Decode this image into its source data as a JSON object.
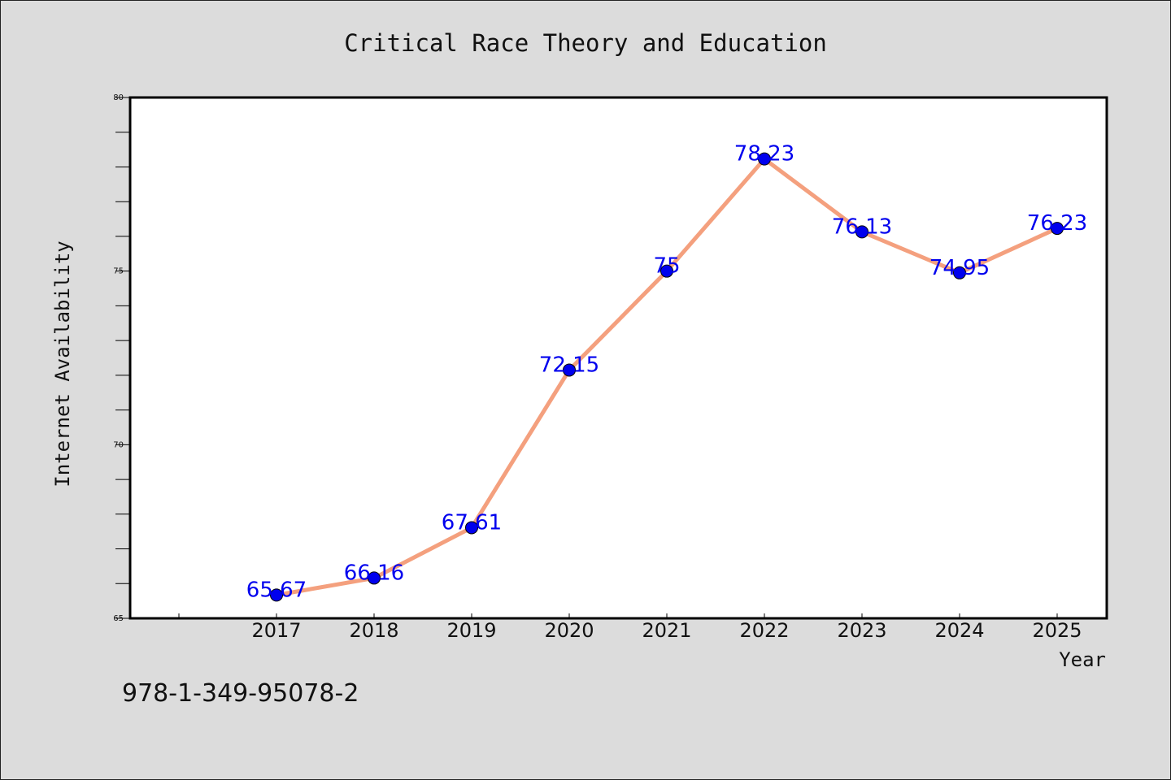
{
  "chart_data": {
    "type": "line",
    "title": "Critical Race Theory and Education",
    "xlabel": "Year",
    "ylabel": "Internet Availability",
    "categories": [
      "2017",
      "2018",
      "2019",
      "2020",
      "2021",
      "2022",
      "2023",
      "2024",
      "2025"
    ],
    "series": [
      {
        "values": [
          65.67,
          66.16,
          67.61,
          72.15,
          75,
          78.23,
          76.13,
          74.95,
          76.23
        ],
        "labels": [
          "65.67",
          "66.16",
          "67.61",
          "72.15",
          "75",
          "78.23",
          "76.13",
          "74.95",
          "76.23"
        ]
      }
    ],
    "ylim": [
      65,
      80
    ],
    "yticks": [
      "65",
      "70",
      "75",
      "80"
    ],
    "grid": false,
    "colors": {
      "line": "#f4a07e",
      "marker": "#0000ee",
      "label": "#0000ee",
      "background": "#dcdcdc",
      "plot_background": "#ffffff"
    }
  },
  "footer": {
    "isbn": "978-1-349-95078-2"
  }
}
